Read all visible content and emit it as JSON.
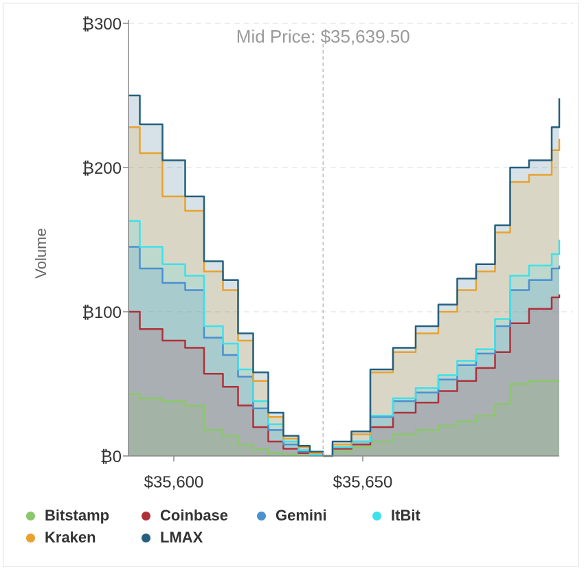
{
  "chart_data": {
    "type": "area",
    "title": "",
    "ylabel": "Volume",
    "xlabel": "",
    "annotation": "Mid Price: $35,639.50",
    "mid_price": 35639.5,
    "xlim": [
      35588,
      35702
    ],
    "ylim": [
      0,
      300
    ],
    "x_ticks": [
      35600,
      35650
    ],
    "x_tick_labels": [
      "$35,600",
      "$35,650"
    ],
    "y_ticks": [
      0,
      100,
      200,
      300
    ],
    "y_tick_labels": [
      "₿0",
      "₿100",
      "₿200",
      "₿300"
    ],
    "grid": "horizontal-dashed",
    "stacked": "cumulative",
    "legend_position": "bottom",
    "bids_x": [
      35588,
      35591,
      35597,
      35603,
      35608,
      35613,
      35617,
      35621,
      35625,
      35629,
      35633,
      35636,
      35639.5
    ],
    "asks_x": [
      35639.5,
      35642,
      35647,
      35652,
      35658,
      35664,
      35670,
      35675,
      35680,
      35685,
      35689,
      35694,
      35700,
      35702
    ],
    "series": [
      {
        "name": "Bitstamp",
        "color": "#8bc86a",
        "bids": [
          43,
          40,
          38,
          35,
          18,
          14,
          8,
          5,
          2,
          1,
          0.5,
          0.2,
          0
        ],
        "asks": [
          0,
          3,
          6,
          10,
          15,
          18,
          21,
          24,
          28,
          36,
          50,
          52,
          52,
          52
        ]
      },
      {
        "name": "Coinbase",
        "color": "#b0303a",
        "bids": [
          100,
          88,
          80,
          75,
          57,
          48,
          35,
          20,
          10,
          5,
          2,
          1,
          0
        ],
        "asks": [
          0,
          5,
          8,
          20,
          30,
          37,
          45,
          52,
          61,
          72,
          92,
          102,
          110,
          112
        ]
      },
      {
        "name": "Gemini",
        "color": "#4a90d2",
        "bids": [
          145,
          130,
          120,
          115,
          82,
          70,
          55,
          33,
          18,
          8,
          3,
          1,
          0
        ],
        "asks": [
          0,
          6,
          10,
          27,
          38,
          44,
          53,
          63,
          71,
          90,
          115,
          122,
          130,
          132
        ]
      },
      {
        "name": "ItBit",
        "color": "#3ee1ea",
        "bids": [
          163,
          145,
          133,
          125,
          90,
          78,
          60,
          38,
          22,
          10,
          4,
          1,
          0
        ],
        "asks": [
          0,
          6,
          10,
          28,
          40,
          47,
          56,
          66,
          74,
          95,
          125,
          132,
          140,
          150
        ]
      },
      {
        "name": "Kraken",
        "color": "#e8a22d",
        "bids": [
          228,
          210,
          180,
          170,
          128,
          115,
          80,
          52,
          27,
          12,
          6,
          2,
          0
        ],
        "asks": [
          0,
          8,
          15,
          58,
          72,
          85,
          100,
          115,
          128,
          155,
          190,
          195,
          212,
          220
        ]
      },
      {
        "name": "LMAX",
        "color": "#24607f",
        "bids": [
          250,
          230,
          205,
          180,
          135,
          122,
          85,
          58,
          30,
          14,
          7,
          3,
          0
        ],
        "asks": [
          0,
          10,
          17,
          60,
          75,
          90,
          105,
          123,
          133,
          160,
          200,
          205,
          228,
          248
        ]
      }
    ]
  }
}
